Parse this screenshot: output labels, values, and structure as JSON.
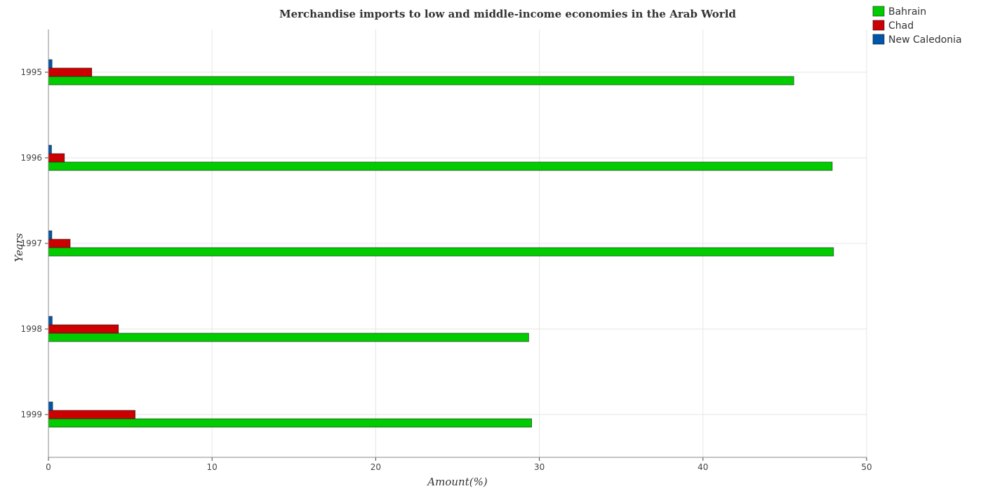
{
  "chart_data": {
    "type": "bar",
    "orientation": "horizontal",
    "title": "Merchandise imports to low and middle-income economies in the Arab World",
    "xlabel": "Amount(%)",
    "ylabel": "Years",
    "xlim": [
      0,
      50
    ],
    "xticks": [
      0,
      10,
      20,
      30,
      40,
      50
    ],
    "categories": [
      "1995",
      "1996",
      "1997",
      "1998",
      "1999"
    ],
    "series": [
      {
        "name": "Bahrain",
        "color": "#00cc00",
        "values": [
          45.55,
          47.9,
          47.98,
          29.35,
          29.53
        ]
      },
      {
        "name": "Chad",
        "color": "#cc0000",
        "values": [
          2.65,
          0.98,
          1.33,
          4.28,
          5.3
        ]
      },
      {
        "name": "New Caledonia",
        "color": "#0055aa",
        "values": [
          0.22,
          0.19,
          0.21,
          0.23,
          0.26
        ]
      }
    ],
    "grid": true,
    "legend_position": "top-right"
  }
}
